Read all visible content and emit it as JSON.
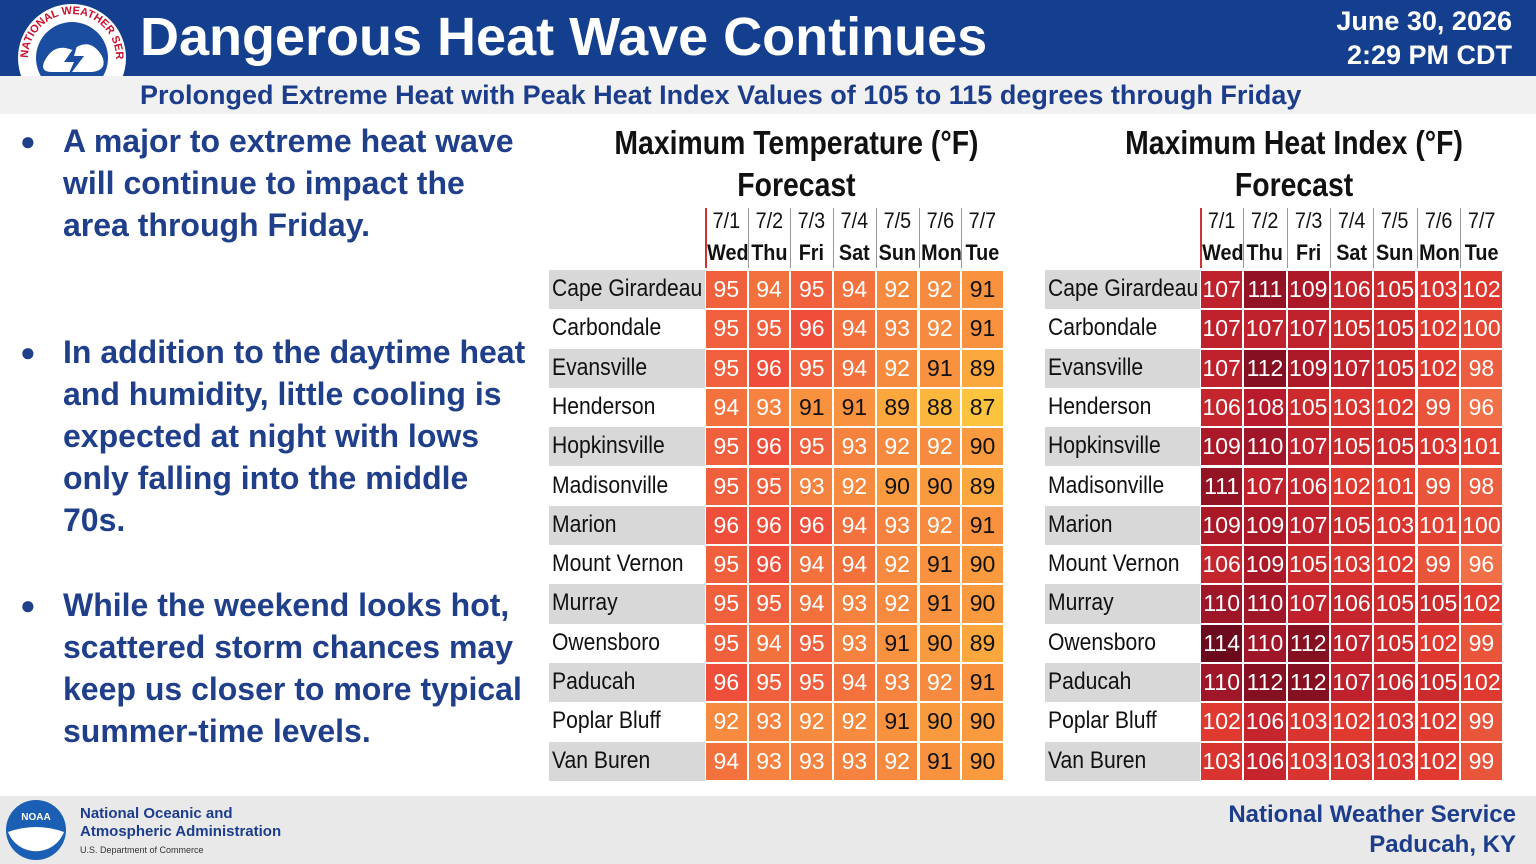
{
  "header": {
    "title": "Dangerous Heat Wave Continues",
    "date": "June 30, 2026",
    "time": "2:29 PM CDT",
    "subtitle": "Prolonged Extreme Heat with Peak Heat Index Values of 105 to 115 degrees through Friday",
    "logo_text": "NATIONAL WEATHER SERVICE"
  },
  "bullets": [
    "A major to extreme heat wave will continue to impact the area through Friday.",
    "In addition to the daytime heat and humidity, little cooling is expected at night with lows only falling into the middle 70s.",
    "While the weekend looks hot, scattered storm chances may keep us closer to more typical summer-time levels."
  ],
  "tables": [
    {
      "title": [
        "Maximum Temperature (°F)",
        "Forecast"
      ],
      "dates": [
        "7/1",
        "7/2",
        "7/3",
        "7/4",
        "7/5",
        "7/6",
        "7/7"
      ],
      "days": [
        "Wed",
        "Thu",
        "Fri",
        "Sat",
        "Sun",
        "Mon",
        "Tue"
      ],
      "rows": [
        {
          "name": "Cape Girardeau",
          "values": [
            95,
            94,
            95,
            94,
            92,
            92,
            91
          ]
        },
        {
          "name": "Carbondale",
          "values": [
            95,
            95,
            96,
            94,
            93,
            92,
            91
          ]
        },
        {
          "name": "Evansville",
          "values": [
            95,
            96,
            95,
            94,
            92,
            91,
            89
          ]
        },
        {
          "name": "Henderson",
          "values": [
            94,
            93,
            91,
            91,
            89,
            88,
            87
          ]
        },
        {
          "name": "Hopkinsville",
          "values": [
            95,
            96,
            95,
            93,
            92,
            92,
            90
          ]
        },
        {
          "name": "Madisonville",
          "values": [
            95,
            95,
            93,
            92,
            90,
            90,
            89
          ]
        },
        {
          "name": "Marion",
          "values": [
            96,
            96,
            96,
            94,
            93,
            92,
            91
          ]
        },
        {
          "name": "Mount Vernon",
          "values": [
            95,
            96,
            94,
            94,
            92,
            91,
            90
          ]
        },
        {
          "name": "Murray",
          "values": [
            95,
            95,
            94,
            93,
            92,
            91,
            90
          ]
        },
        {
          "name": "Owensboro",
          "values": [
            95,
            94,
            95,
            93,
            91,
            90,
            89
          ]
        },
        {
          "name": "Paducah",
          "values": [
            96,
            95,
            95,
            94,
            93,
            92,
            91
          ]
        },
        {
          "name": "Poplar Bluff",
          "values": [
            92,
            93,
            92,
            92,
            91,
            90,
            90
          ]
        },
        {
          "name": "Van Buren",
          "values": [
            94,
            93,
            93,
            93,
            92,
            91,
            90
          ]
        }
      ]
    },
    {
      "title": [
        "Maximum Heat Index (°F)",
        "Forecast"
      ],
      "dates": [
        "7/1",
        "7/2",
        "7/3",
        "7/4",
        "7/5",
        "7/6",
        "7/7"
      ],
      "days": [
        "Wed",
        "Thu",
        "Fri",
        "Sat",
        "Sun",
        "Mon",
        "Tue"
      ],
      "rows": [
        {
          "name": "Cape Girardeau",
          "values": [
            107,
            111,
            109,
            106,
            105,
            103,
            102
          ]
        },
        {
          "name": "Carbondale",
          "values": [
            107,
            107,
            107,
            105,
            105,
            102,
            100
          ]
        },
        {
          "name": "Evansville",
          "values": [
            107,
            112,
            109,
            107,
            105,
            102,
            98
          ]
        },
        {
          "name": "Henderson",
          "values": [
            106,
            108,
            105,
            103,
            102,
            99,
            96
          ]
        },
        {
          "name": "Hopkinsville",
          "values": [
            109,
            110,
            107,
            105,
            105,
            103,
            101
          ]
        },
        {
          "name": "Madisonville",
          "values": [
            111,
            107,
            106,
            102,
            101,
            99,
            98
          ]
        },
        {
          "name": "Marion",
          "values": [
            109,
            109,
            107,
            105,
            103,
            101,
            100
          ]
        },
        {
          "name": "Mount Vernon",
          "values": [
            106,
            109,
            105,
            103,
            102,
            99,
            96
          ]
        },
        {
          "name": "Murray",
          "values": [
            110,
            110,
            107,
            106,
            105,
            105,
            102
          ]
        },
        {
          "name": "Owensboro",
          "values": [
            114,
            110,
            112,
            107,
            105,
            102,
            99
          ]
        },
        {
          "name": "Paducah",
          "values": [
            110,
            112,
            112,
            107,
            106,
            105,
            102
          ]
        },
        {
          "name": "Poplar Bluff",
          "values": [
            102,
            106,
            103,
            102,
            103,
            102,
            99
          ]
        },
        {
          "name": "Van Buren",
          "values": [
            103,
            106,
            103,
            103,
            103,
            102,
            99
          ]
        }
      ]
    }
  ],
  "footer": {
    "noaa_logo": "NOAA",
    "agency": [
      "National Oceanic and",
      "Atmospheric Administration"
    ],
    "department": "U.S. Department of Commerce",
    "office": [
      "National Weather Service",
      "Paducah, KY"
    ]
  }
}
